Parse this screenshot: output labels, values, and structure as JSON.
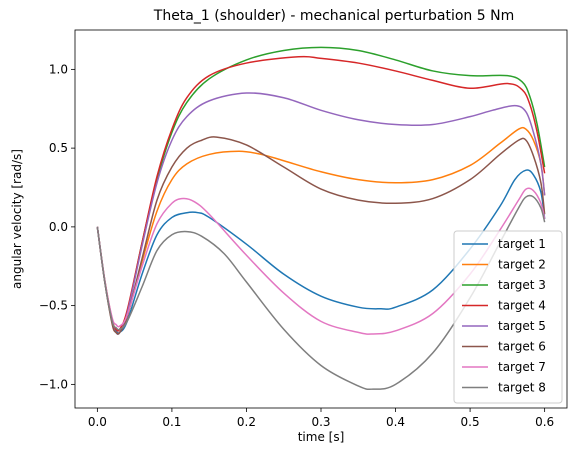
{
  "chart_data": {
    "type": "line",
    "title": "Theta_1 (shoulder) - mechanical perturbation 5 Nm",
    "xlabel": "time [s]",
    "ylabel": "angular velocity [rad/s]",
    "xlim": [
      -0.03,
      0.63
    ],
    "ylim": [
      -1.15,
      1.25
    ],
    "xticks": [
      0.0,
      0.1,
      0.2,
      0.3,
      0.4,
      0.5,
      0.6
    ],
    "xtick_labels": [
      "0.0",
      "0.1",
      "0.2",
      "0.3",
      "0.4",
      "0.5",
      "0.6"
    ],
    "yticks": [
      -1.0,
      -0.5,
      0.0,
      0.5,
      1.0
    ],
    "ytick_labels": [
      "−1.0",
      "−0.5",
      "0.0",
      "0.5",
      "1.0"
    ],
    "grid": false,
    "legend_position": "lower-right",
    "series": [
      {
        "name": "target 1",
        "color": "#1f77b4",
        "x": [
          0,
          0.01,
          0.02,
          0.025,
          0.03,
          0.04,
          0.06,
          0.08,
          0.1,
          0.12,
          0.135,
          0.15,
          0.2,
          0.25,
          0.3,
          0.35,
          0.38,
          0.4,
          0.45,
          0.5,
          0.54,
          0.56,
          0.575,
          0.585,
          0.595,
          0.6
        ],
        "y": [
          0,
          -0.34,
          -0.6,
          -0.66,
          -0.67,
          -0.6,
          -0.3,
          -0.05,
          0.06,
          0.09,
          0.09,
          0.06,
          -0.11,
          -0.3,
          -0.44,
          -0.51,
          -0.52,
          -0.51,
          -0.4,
          -0.14,
          0.13,
          0.3,
          0.36,
          0.33,
          0.22,
          0.05
        ]
      },
      {
        "name": "target 2",
        "color": "#ff7f0e",
        "x": [
          0,
          0.01,
          0.02,
          0.025,
          0.03,
          0.04,
          0.06,
          0.08,
          0.1,
          0.12,
          0.15,
          0.19,
          0.22,
          0.25,
          0.3,
          0.35,
          0.4,
          0.45,
          0.5,
          0.54,
          0.565,
          0.575,
          0.585,
          0.595,
          0.6
        ],
        "y": [
          0,
          -0.34,
          -0.59,
          -0.65,
          -0.65,
          -0.57,
          -0.22,
          0.1,
          0.3,
          0.4,
          0.46,
          0.48,
          0.46,
          0.42,
          0.35,
          0.3,
          0.28,
          0.3,
          0.39,
          0.53,
          0.62,
          0.62,
          0.55,
          0.4,
          0.2
        ]
      },
      {
        "name": "target 3",
        "color": "#2ca02c",
        "x": [
          0,
          0.01,
          0.02,
          0.025,
          0.03,
          0.04,
          0.06,
          0.08,
          0.1,
          0.12,
          0.15,
          0.2,
          0.25,
          0.3,
          0.35,
          0.4,
          0.45,
          0.5,
          0.55,
          0.57,
          0.58,
          0.59,
          0.6
        ],
        "y": [
          0,
          -0.35,
          -0.61,
          -0.67,
          -0.67,
          -0.55,
          -0.1,
          0.3,
          0.6,
          0.79,
          0.94,
          1.06,
          1.12,
          1.14,
          1.12,
          1.06,
          0.99,
          0.96,
          0.96,
          0.92,
          0.83,
          0.65,
          0.38
        ]
      },
      {
        "name": "target 4",
        "color": "#d62728",
        "x": [
          0,
          0.01,
          0.02,
          0.025,
          0.03,
          0.04,
          0.06,
          0.08,
          0.1,
          0.12,
          0.15,
          0.2,
          0.27,
          0.3,
          0.35,
          0.4,
          0.45,
          0.5,
          0.55,
          0.57,
          0.58,
          0.59,
          0.6
        ],
        "y": [
          0,
          -0.35,
          -0.6,
          -0.65,
          -0.65,
          -0.53,
          -0.1,
          0.32,
          0.62,
          0.82,
          0.96,
          1.04,
          1.08,
          1.07,
          1.04,
          0.99,
          0.93,
          0.88,
          0.91,
          0.87,
          0.78,
          0.6,
          0.34
        ]
      },
      {
        "name": "target 5",
        "color": "#9467bd",
        "x": [
          0,
          0.01,
          0.02,
          0.025,
          0.03,
          0.04,
          0.06,
          0.08,
          0.1,
          0.12,
          0.15,
          0.2,
          0.25,
          0.3,
          0.35,
          0.4,
          0.45,
          0.5,
          0.53,
          0.56,
          0.575,
          0.585,
          0.595,
          0.6
        ],
        "y": [
          0,
          -0.35,
          -0.61,
          -0.67,
          -0.67,
          -0.55,
          -0.12,
          0.28,
          0.55,
          0.7,
          0.8,
          0.85,
          0.82,
          0.74,
          0.68,
          0.65,
          0.65,
          0.7,
          0.74,
          0.77,
          0.73,
          0.6,
          0.4,
          0.2
        ]
      },
      {
        "name": "target 6",
        "color": "#8c564b",
        "x": [
          0,
          0.01,
          0.02,
          0.025,
          0.03,
          0.04,
          0.06,
          0.08,
          0.1,
          0.12,
          0.14,
          0.16,
          0.2,
          0.25,
          0.3,
          0.35,
          0.4,
          0.45,
          0.5,
          0.54,
          0.565,
          0.575,
          0.585,
          0.595,
          0.6
        ],
        "y": [
          0,
          -0.35,
          -0.62,
          -0.67,
          -0.67,
          -0.57,
          -0.2,
          0.17,
          0.38,
          0.5,
          0.55,
          0.57,
          0.52,
          0.38,
          0.24,
          0.17,
          0.15,
          0.18,
          0.3,
          0.46,
          0.55,
          0.55,
          0.45,
          0.28,
          0.08
        ]
      },
      {
        "name": "target 7",
        "color": "#e377c2",
        "x": [
          0,
          0.01,
          0.02,
          0.025,
          0.03,
          0.04,
          0.06,
          0.08,
          0.1,
          0.115,
          0.13,
          0.15,
          0.2,
          0.25,
          0.3,
          0.35,
          0.37,
          0.4,
          0.45,
          0.5,
          0.54,
          0.565,
          0.575,
          0.585,
          0.595,
          0.6
        ],
        "y": [
          0,
          -0.34,
          -0.58,
          -0.62,
          -0.63,
          -0.56,
          -0.25,
          0.02,
          0.15,
          0.18,
          0.16,
          0.08,
          -0.18,
          -0.42,
          -0.6,
          -0.67,
          -0.68,
          -0.66,
          -0.55,
          -0.3,
          -0.02,
          0.17,
          0.24,
          0.23,
          0.15,
          0.05
        ]
      },
      {
        "name": "target 8",
        "color": "#7f7f7f",
        "x": [
          0,
          0.01,
          0.02,
          0.025,
          0.03,
          0.04,
          0.06,
          0.08,
          0.1,
          0.12,
          0.14,
          0.17,
          0.2,
          0.25,
          0.3,
          0.35,
          0.37,
          0.4,
          0.45,
          0.5,
          0.54,
          0.565,
          0.575,
          0.585,
          0.595,
          0.6
        ],
        "y": [
          0,
          -0.35,
          -0.6,
          -0.64,
          -0.65,
          -0.6,
          -0.38,
          -0.15,
          -0.05,
          -0.03,
          -0.06,
          -0.17,
          -0.35,
          -0.65,
          -0.88,
          -1.01,
          -1.03,
          -1.0,
          -0.8,
          -0.45,
          -0.1,
          0.12,
          0.19,
          0.19,
          0.12,
          0.03
        ]
      }
    ]
  }
}
